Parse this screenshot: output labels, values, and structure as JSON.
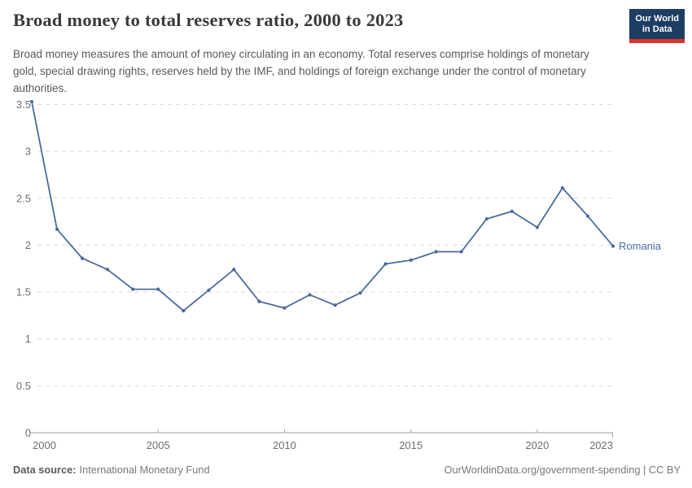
{
  "header": {
    "title": "Broad money to total reserves ratio, 2000 to 2023",
    "subtitle": "Broad money measures the amount of money circulating in an economy. Total reserves comprise holdings of monetary gold, special drawing rights, reserves held by the IMF, and holdings of foreign exchange under the control of monetary authorities.",
    "logo": {
      "line1": "Our World",
      "line2": "in Data"
    }
  },
  "chart_data": {
    "type": "line",
    "title": "Broad money to total reserves ratio, 2000 to 2023",
    "xlabel": "",
    "ylabel": "",
    "x": [
      2000,
      2001,
      2002,
      2003,
      2004,
      2005,
      2006,
      2007,
      2008,
      2009,
      2010,
      2011,
      2012,
      2013,
      2014,
      2015,
      2016,
      2017,
      2018,
      2019,
      2020,
      2021,
      2022,
      2023
    ],
    "series": [
      {
        "name": "Romania",
        "color": "#4c6a9c",
        "values": [
          3.53,
          2.17,
          1.86,
          1.74,
          1.53,
          1.53,
          1.3,
          1.52,
          1.74,
          1.4,
          1.33,
          1.47,
          1.36,
          1.49,
          1.8,
          1.84,
          1.93,
          1.93,
          2.28,
          2.36,
          2.19,
          2.61,
          2.31,
          1.99
        ]
      }
    ],
    "xlim": [
      2000,
      2023
    ],
    "ylim": [
      0,
      3.5
    ],
    "x_ticks": [
      2000,
      2005,
      2010,
      2015,
      2020,
      2023
    ],
    "x_tick_labels": [
      "2000",
      "2005",
      "2010",
      "2015",
      "2020",
      "2023"
    ],
    "y_ticks": [
      0,
      0.5,
      1,
      1.5,
      2,
      2.5,
      3,
      3.5
    ],
    "y_tick_labels": [
      "0",
      "0.5",
      "1",
      "1.5",
      "2",
      "2.5",
      "3",
      "3.5"
    ],
    "grid": "horizontal-dashed",
    "legend_position": "entity-label-at-line-end"
  },
  "colors": {
    "line": "#4c6a9c",
    "grid": "#d9d9d9",
    "axis": "#9e9e9e",
    "tick_text": "#6e6e6e",
    "logo_bg": "#1d3d63",
    "logo_stripe": "#d7352b"
  },
  "footer": {
    "datasource_label": "Data source:",
    "datasource_value": "International Monetary Fund",
    "link": "OurWorldinData.org/government-spending",
    "separator": " | ",
    "license": "CC BY"
  }
}
